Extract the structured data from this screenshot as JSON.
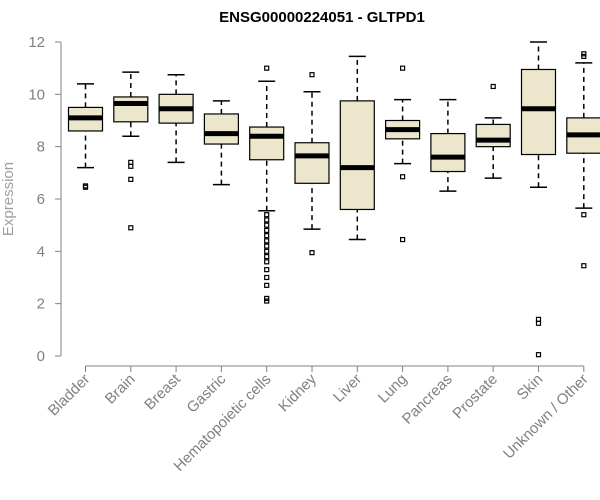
{
  "chart_data": {
    "type": "boxplot",
    "title": "ENSG00000224051 - GLTPD1",
    "xlabel": "",
    "ylabel": "Expression",
    "ylim": [
      0,
      12
    ],
    "yticks": [
      0,
      2,
      4,
      6,
      8,
      10,
      12
    ],
    "grid": false,
    "colors": {
      "box_fill": "#ece6cc",
      "median": "#000000",
      "axis": "#808080"
    },
    "categories": [
      "Bladder",
      "Brain",
      "Breast",
      "Gastric",
      "Hematopoietic cells",
      "Kidney",
      "Liver",
      "Lung",
      "Pancreas",
      "Prostate",
      "Skin",
      "Unknown / Other"
    ],
    "boxes": [
      {
        "category": "Bladder",
        "whisker_low": 7.2,
        "q1": 8.6,
        "median": 9.1,
        "q3": 9.5,
        "whisker_high": 10.4,
        "outliers": [
          6.5,
          6.45
        ]
      },
      {
        "category": "Brain",
        "whisker_low": 8.4,
        "q1": 8.95,
        "median": 9.65,
        "q3": 9.9,
        "whisker_high": 10.85,
        "outliers": [
          7.4,
          7.25,
          6.75,
          4.9
        ]
      },
      {
        "category": "Breast",
        "whisker_low": 7.4,
        "q1": 8.9,
        "median": 9.45,
        "q3": 10.0,
        "whisker_high": 10.75,
        "outliers": []
      },
      {
        "category": "Gastric",
        "whisker_low": 6.55,
        "q1": 8.1,
        "median": 8.5,
        "q3": 9.25,
        "whisker_high": 9.75,
        "outliers": []
      },
      {
        "category": "Hematopoietic cells",
        "whisker_low": 5.55,
        "q1": 7.5,
        "median": 8.4,
        "q3": 8.75,
        "whisker_high": 10.5,
        "outliers": [
          11.0,
          5.4,
          5.2,
          5.0,
          4.8,
          4.6,
          4.4,
          4.2,
          4.0,
          3.8,
          3.6,
          3.3,
          3.0,
          2.7,
          2.2,
          2.1
        ]
      },
      {
        "category": "Kidney",
        "whisker_low": 4.85,
        "q1": 6.6,
        "median": 7.65,
        "q3": 8.15,
        "whisker_high": 10.1,
        "outliers": [
          10.75,
          3.95
        ]
      },
      {
        "category": "Liver",
        "whisker_low": 4.45,
        "q1": 5.6,
        "median": 7.2,
        "q3": 9.75,
        "whisker_high": 11.45,
        "outliers": []
      },
      {
        "category": "Lung",
        "whisker_low": 7.35,
        "q1": 8.3,
        "median": 8.65,
        "q3": 9.0,
        "whisker_high": 9.8,
        "outliers": [
          11.0,
          6.85,
          4.45
        ]
      },
      {
        "category": "Pancreas",
        "whisker_low": 6.3,
        "q1": 7.05,
        "median": 7.6,
        "q3": 8.5,
        "whisker_high": 9.8,
        "outliers": []
      },
      {
        "category": "Prostate",
        "whisker_low": 6.8,
        "q1": 8.0,
        "median": 8.25,
        "q3": 8.85,
        "whisker_high": 9.1,
        "outliers": [
          10.3
        ]
      },
      {
        "category": "Skin",
        "whisker_low": 6.45,
        "q1": 7.7,
        "median": 9.45,
        "q3": 10.95,
        "whisker_high": 12.0,
        "outliers": [
          1.4,
          1.25,
          0.05
        ]
      },
      {
        "category": "Unknown / Other",
        "whisker_low": 5.65,
        "q1": 7.75,
        "median": 8.45,
        "q3": 9.1,
        "whisker_high": 11.2,
        "outliers": [
          11.55,
          11.45,
          5.4,
          3.45
        ]
      }
    ]
  }
}
